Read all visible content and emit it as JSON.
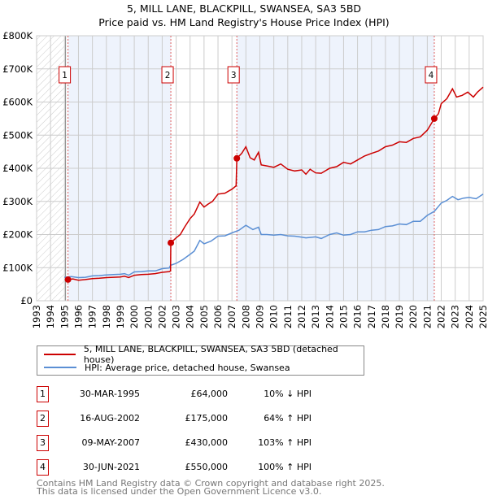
{
  "title": "5, MILL LANE, BLACKPILL, SWANSEA, SA3 5BD",
  "subtitle": "Price paid vs. HM Land Registry's House Price Index (HPI)",
  "chart_data": {
    "type": "line",
    "title": "5, MILL LANE, BLACKPILL, SWANSEA, SA3 5BD",
    "subtitle": "Price paid vs. HM Land Registry's House Price Index (HPI)",
    "xlim": [
      1993,
      2025
    ],
    "ylim": [
      0,
      800000
    ],
    "y_ticks": [
      {
        "v": 0,
        "label": "£0"
      },
      {
        "v": 100000,
        "label": "£100K"
      },
      {
        "v": 200000,
        "label": "£200K"
      },
      {
        "v": 300000,
        "label": "£300K"
      },
      {
        "v": 400000,
        "label": "£400K"
      },
      {
        "v": 500000,
        "label": "£500K"
      },
      {
        "v": 600000,
        "label": "£600K"
      },
      {
        "v": 700000,
        "label": "£700K"
      },
      {
        "v": 800000,
        "label": "£800K"
      }
    ],
    "x_ticks": [
      "1993",
      "1994",
      "1995",
      "1996",
      "1997",
      "1998",
      "1999",
      "2000",
      "2001",
      "2002",
      "2003",
      "2004",
      "2005",
      "2006",
      "2007",
      "2008",
      "2009",
      "2010",
      "2011",
      "2012",
      "2013",
      "2014",
      "2015",
      "2016",
      "2017",
      "2018",
      "2019",
      "2020",
      "2021",
      "2022",
      "2023",
      "2024",
      "2025"
    ],
    "grid": true,
    "series": [
      {
        "name": "5, MILL LANE, BLACKPILL, SWANSEA, SA3 5BD (detached house)",
        "color": "#cc0000",
        "x": [
          1995.25,
          1995.6,
          1996,
          1996.5,
          1997,
          1997.5,
          1998,
          1998.5,
          1999,
          1999.3,
          1999.6,
          2000,
          2000.5,
          2001,
          2001.5,
          2002,
          2002.5,
          2002.6,
          2002.62,
          2003,
          2003.3,
          2003.6,
          2004,
          2004.3,
          2004.7,
          2005,
          2005.3,
          2005.6,
          2006,
          2006.5,
          2007,
          2007.3,
          2007.35,
          2007.7,
          2008,
          2008.3,
          2008.6,
          2008.9,
          2009.1,
          2009.5,
          2010,
          2010.5,
          2011,
          2011.5,
          2012,
          2012.3,
          2012.6,
          2013,
          2013.4,
          2014,
          2014.5,
          2015,
          2015.5,
          2016,
          2016.5,
          2017,
          2017.5,
          2018,
          2018.5,
          2019,
          2019.5,
          2020,
          2020.5,
          2021,
          2021.5,
          2021.8,
          2022,
          2022.4,
          2022.8,
          2023.1,
          2023.5,
          2023.9,
          2024.3,
          2024.6,
          2025
        ],
        "y": [
          64000,
          66000,
          62000,
          64000,
          67000,
          68000,
          70000,
          71000,
          72000,
          74000,
          70000,
          77000,
          79000,
          80000,
          82000,
          86000,
          88000,
          90000,
          175000,
          190000,
          200000,
          222000,
          248000,
          262000,
          298000,
          283000,
          292000,
          300000,
          322000,
          325000,
          337000,
          347000,
          430000,
          445000,
          465000,
          432000,
          425000,
          448000,
          410000,
          407000,
          403000,
          413000,
          397000,
          392000,
          395000,
          382000,
          397000,
          386000,
          385000,
          400000,
          405000,
          418000,
          413000,
          425000,
          437000,
          445000,
          452000,
          465000,
          470000,
          480000,
          478000,
          490000,
          495000,
          515000,
          550000,
          565000,
          595000,
          610000,
          640000,
          615000,
          620000,
          630000,
          615000,
          630000,
          645000
        ]
      },
      {
        "name": "HPI: Average price, detached house, Swansea",
        "color": "#5b8fd4",
        "x": [
          1995,
          1995.5,
          1996,
          1996.5,
          1997,
          1997.5,
          1998,
          1998.5,
          1999,
          1999.3,
          1999.6,
          2000,
          2000.5,
          2001,
          2001.5,
          2002,
          2002.5,
          2002.6,
          2003,
          2003.5,
          2004,
          2004.3,
          2004.7,
          2005,
          2005.5,
          2006,
          2006.5,
          2007,
          2007.5,
          2008,
          2008.5,
          2008.9,
          2009.1,
          2009.5,
          2010,
          2010.5,
          2011,
          2011.5,
          2012,
          2012.3,
          2013,
          2013.4,
          2014,
          2014.5,
          2015,
          2015.5,
          2016,
          2016.5,
          2017,
          2017.5,
          2018,
          2018.5,
          2019,
          2019.5,
          2020,
          2020.5,
          2021,
          2021.5,
          2022,
          2022.4,
          2022.8,
          2023.2,
          2023.6,
          2024,
          2024.5,
          2025
        ],
        "y": [
          71000,
          73000,
          70000,
          71000,
          75000,
          76000,
          78000,
          79000,
          80000,
          82000,
          77000,
          87000,
          88000,
          90000,
          90000,
          97000,
          99000,
          107000,
          113000,
          125000,
          140000,
          150000,
          182000,
          172000,
          180000,
          195000,
          196000,
          205000,
          213000,
          228000,
          215000,
          222000,
          200000,
          200000,
          198000,
          200000,
          196000,
          195000,
          192000,
          190000,
          193000,
          188000,
          200000,
          205000,
          198000,
          200000,
          208000,
          208000,
          213000,
          215000,
          224000,
          226000,
          232000,
          230000,
          240000,
          240000,
          258000,
          270000,
          295000,
          303000,
          315000,
          305000,
          310000,
          312000,
          308000,
          322000
        ]
      }
    ],
    "sales": [
      {
        "n": "1",
        "x": 1995.25,
        "y": 64000
      },
      {
        "n": "2",
        "x": 2002.62,
        "y": 175000
      },
      {
        "n": "3",
        "x": 2007.35,
        "y": 430000
      },
      {
        "n": "4",
        "x": 2021.5,
        "y": 550000
      }
    ],
    "colors": {
      "sale": "#cc0000",
      "hpi": "#5b8fd4",
      "shade": "#eef3fc",
      "grid": "#cccccc"
    }
  },
  "legend": {
    "items": [
      "5, MILL LANE, BLACKPILL, SWANSEA, SA3 5BD (detached house)",
      "HPI: Average price, detached house, Swansea"
    ]
  },
  "transactions": [
    {
      "n": "1",
      "date": "30-MAR-1995",
      "price": "£64,000",
      "hpi": "10% ↓ HPI"
    },
    {
      "n": "2",
      "date": "16-AUG-2002",
      "price": "£175,000",
      "hpi": "64% ↑ HPI"
    },
    {
      "n": "3",
      "date": "09-MAY-2007",
      "price": "£430,000",
      "hpi": "103% ↑ HPI"
    },
    {
      "n": "4",
      "date": "30-JUN-2021",
      "price": "£550,000",
      "hpi": "100% ↑ HPI"
    }
  ],
  "footer": {
    "line1": "Contains HM Land Registry data © Crown copyright and database right 2025.",
    "line2": "This data is licensed under the Open Government Licence v3.0."
  }
}
